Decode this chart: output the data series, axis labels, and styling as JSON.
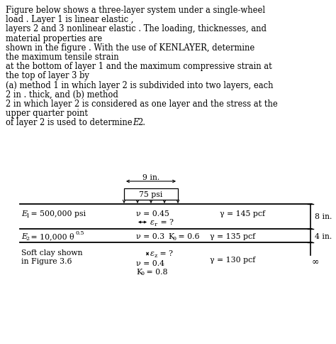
{
  "bg_color": "#ffffff",
  "text_color": "#000000",
  "title_lines": [
    "Figure below shows a three-layer system under a single-wheel",
    "load . Layer 1 is linear elastic ,",
    "layers 2 and 3 nonlinear elastic . The loading, thicknesses, and",
    "material properties are",
    "shown in the figure . With the use of KENLAYER, determine",
    "the maximum tensile strain",
    "at the bottom of layer 1 and the maximum compressive strain at",
    "the top of layer 3 by",
    "(a) method 1 in which layer 2 is subdivided into two layers, each",
    "2 in . thick, and (b) method",
    "2 in which layer 2 is considered as one layer and the stress at the",
    "upper quarter point",
    "of layer 2 is used to determine E2."
  ],
  "load_label": "9 in.",
  "load_pressure": "75 psi",
  "layer1_E": "E",
  "layer1_E_sub": "1",
  "layer1_E_val": " = 500,000 psi",
  "layer1_nu": "ν = 0.45",
  "layer1_gamma": "γ = 145 pcf",
  "layer1_thick": "8 in.",
  "layer1_eps": "ε",
  "layer1_eps_sub": "r",
  "layer1_eps_val": " = ?",
  "layer2_E": "E",
  "layer2_E_sub": "2",
  "layer2_E_val": " = 10,000 θ",
  "layer2_E_exp": "0.5",
  "layer2_nu": "ν = 0.3",
  "layer2_K0": "K",
  "layer2_K0_sub": "0",
  "layer2_K0_val": " = 0.6",
  "layer2_gamma": "γ = 135 pcf",
  "layer2_thick": "4 in.",
  "layer3_left1": "Soft clay shown",
  "layer3_left2": "in Figure 3.6",
  "layer3_eps": "ε",
  "layer3_eps_sub": "z",
  "layer3_eps_val": " = ?",
  "layer3_nu": "ν = 0.4",
  "layer3_K0": "K",
  "layer3_K0_sub": "0",
  "layer3_K0_val": " = 0.8",
  "layer3_gamma": "γ = 130 pcf",
  "layer3_thick": "∞",
  "font_size_title": 8.3,
  "font_size_diagram": 7.8
}
